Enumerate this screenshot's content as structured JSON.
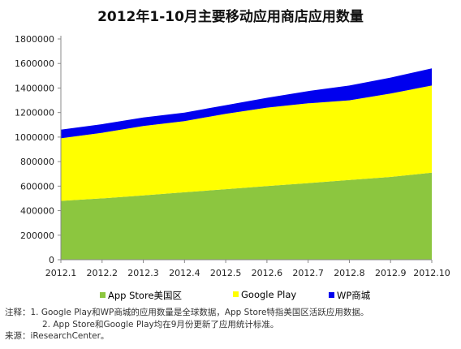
{
  "chart_data": {
    "type": "area",
    "stacked": true,
    "title": "2012年1-10月主要移动应用商店应用数量",
    "categories": [
      "2012.1",
      "2012.2",
      "2012.3",
      "2012.4",
      "2012.5",
      "2012.6",
      "2012.7",
      "2012.8",
      "2012.9",
      "2012.10"
    ],
    "ylim": [
      0,
      1800000
    ],
    "yticks": [
      "0",
      "200000",
      "400000",
      "600000",
      "800000",
      "1000000",
      "1200000",
      "1400000",
      "1600000",
      "1800000"
    ],
    "series": [
      {
        "name": "App Store美国区",
        "color": "#8cc63f",
        "values": [
          480000,
          500000,
          525000,
          550000,
          575000,
          600000,
          625000,
          650000,
          675000,
          710000
        ]
      },
      {
        "name": "Google Play",
        "color": "#ffff00",
        "values": [
          510000,
          535000,
          565000,
          580000,
          615000,
          640000,
          650000,
          650000,
          680000,
          710000
        ]
      },
      {
        "name": "WP商城",
        "color": "#0000ee",
        "values": [
          70000,
          70000,
          70000,
          70000,
          70000,
          80000,
          100000,
          120000,
          130000,
          140000
        ]
      }
    ],
    "legend_position": "bottom",
    "grid": false
  },
  "notes": {
    "line1": "注释：1. Google Play和WP商城的应用数量是全球数据，App Store特指美国区活跃应用数据。",
    "line2": "2. App Store和Google Play均在9月份更新了应用统计标准。",
    "line3": "来源：iResearchCenter。"
  }
}
